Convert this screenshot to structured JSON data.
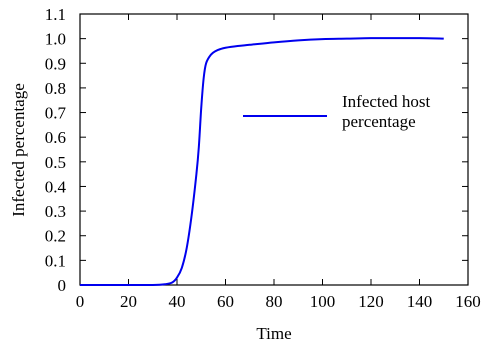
{
  "chart_data": {
    "type": "line",
    "title": "",
    "xlabel": "Time",
    "ylabel": "Infected percentage",
    "xlim": [
      0,
      160
    ],
    "ylim": [
      0,
      1.1
    ],
    "x_ticks": [
      "0",
      "20",
      "40",
      "60",
      "80",
      "100",
      "120",
      "140",
      "160"
    ],
    "y_ticks": [
      "0",
      "0.1",
      "0.2",
      "0.3",
      "0.4",
      "0.5",
      "0.6",
      "0.7",
      "0.8",
      "0.9",
      "1.0",
      "1.1"
    ],
    "grid": false,
    "legend_position": "center-right",
    "series": [
      {
        "name": "Infected host percentage",
        "color": "#0000ee",
        "x": [
          0,
          20,
          30,
          35,
          38,
          40,
          42,
          44,
          46,
          48,
          49,
          50,
          51,
          52,
          54,
          56,
          58,
          60,
          65,
          70,
          80,
          90,
          100,
          110,
          120,
          130,
          140,
          150
        ],
        "y": [
          0,
          0,
          0,
          0.003,
          0.01,
          0.03,
          0.07,
          0.15,
          0.28,
          0.45,
          0.56,
          0.72,
          0.84,
          0.9,
          0.935,
          0.95,
          0.958,
          0.963,
          0.97,
          0.975,
          0.985,
          0.993,
          0.998,
          1.0,
          1.002,
          1.002,
          1.002,
          1.0
        ]
      }
    ]
  }
}
